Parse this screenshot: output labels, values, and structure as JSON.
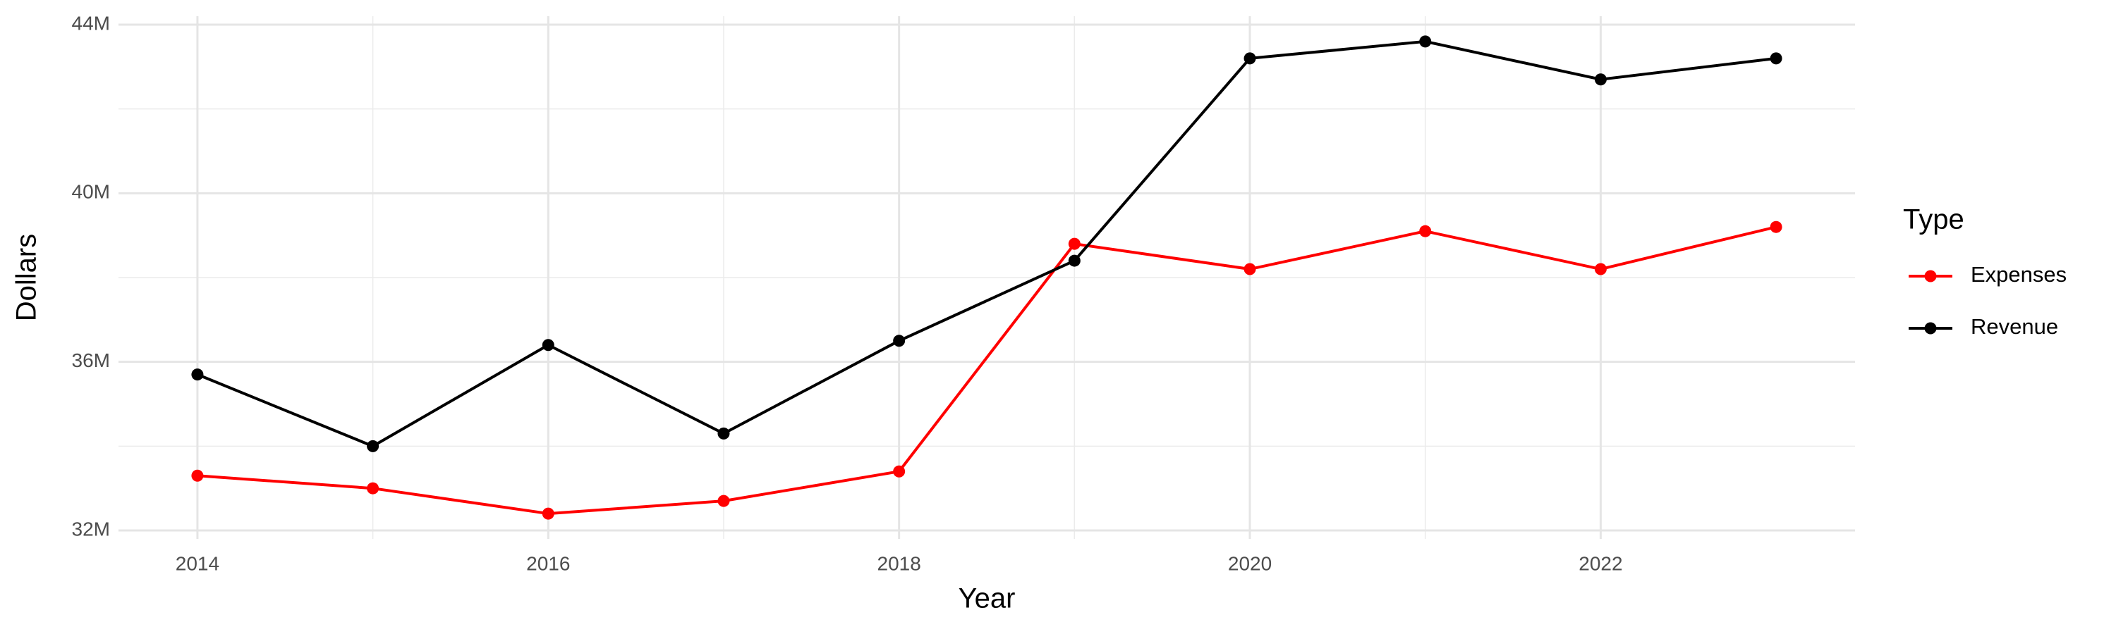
{
  "chart_data": {
    "type": "line",
    "x_label": "Year",
    "y_label": "Dollars",
    "legend_title": "Type",
    "x": [
      2014,
      2015,
      2016,
      2017,
      2018,
      2019,
      2020,
      2021,
      2022,
      2023
    ],
    "series": [
      {
        "name": "Expenses",
        "color": "#ff0000",
        "values": [
          33300000,
          33000000,
          32400000,
          32700000,
          33400000,
          38800000,
          38200000,
          39100000,
          38200000,
          39200000
        ]
      },
      {
        "name": "Revenue",
        "color": "#000000",
        "values": [
          35700000,
          34000000,
          36400000,
          34300000,
          36500000,
          38400000,
          43200000,
          43600000,
          42700000,
          43200000
        ]
      }
    ],
    "xlim": [
      2013.55,
      2023.45
    ],
    "xticks": [
      2014,
      2016,
      2018,
      2020,
      2022
    ],
    "ylim": [
      31800000,
      44200000
    ],
    "yticks": [
      {
        "value": 32000000,
        "label": "32M"
      },
      {
        "value": 36000000,
        "label": "36M"
      },
      {
        "value": 40000000,
        "label": "40M"
      },
      {
        "value": 44000000,
        "label": "44M"
      }
    ],
    "grid": true,
    "legend": "right"
  }
}
